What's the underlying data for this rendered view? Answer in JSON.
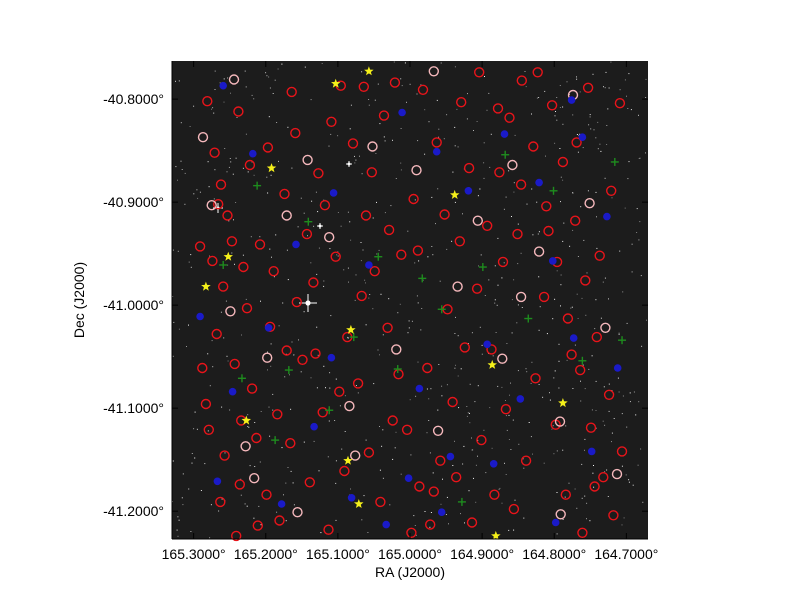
{
  "chart_data": {
    "type": "scatter",
    "title": "",
    "xlabel": "RA (J2000)",
    "ylabel": "Dec (J2000)",
    "xlim": [
      165.33,
      164.67
    ],
    "ylim": [
      -41.227,
      -40.763
    ],
    "x_ticks": [
      165.3,
      165.2,
      165.1,
      165.0,
      164.9,
      164.8,
      164.7
    ],
    "x_tick_labels": [
      "165.3000°",
      "165.2000°",
      "165.1000°",
      "165.0000°",
      "164.9000°",
      "164.8000°",
      "164.7000°"
    ],
    "y_ticks": [
      -40.8,
      -40.9,
      -41.0,
      -41.1,
      -41.2
    ],
    "y_tick_labels": [
      "-40.8000°",
      "-40.9000°",
      "-41.0000°",
      "-41.1000°",
      "-41.2000°"
    ],
    "grid": false,
    "background": "#1c1c1c",
    "series": [
      {
        "marker": "open-circle",
        "color": "#e8141a",
        "points": [
          [
            165.281,
            -40.802
          ],
          [
            165.271,
            -40.852
          ],
          [
            165.262,
            -40.883
          ],
          [
            165.247,
            -40.938
          ],
          [
            165.231,
            -40.963
          ],
          [
            165.259,
            -40.982
          ],
          [
            165.268,
            -41.028
          ],
          [
            165.243,
            -41.057
          ],
          [
            165.219,
            -41.081
          ],
          [
            165.283,
            -41.096
          ],
          [
            165.257,
            -41.146
          ],
          [
            165.236,
            -41.174
          ],
          [
            165.211,
            -41.214
          ],
          [
            165.199,
            -41.184
          ],
          [
            165.184,
            -41.106
          ],
          [
            165.171,
            -41.044
          ],
          [
            165.157,
            -40.997
          ],
          [
            165.143,
            -40.931
          ],
          [
            165.127,
            -40.872
          ],
          [
            165.109,
            -40.822
          ],
          [
            165.096,
            -40.787
          ],
          [
            165.079,
            -40.843
          ],
          [
            165.061,
            -40.913
          ],
          [
            165.049,
            -40.967
          ],
          [
            165.031,
            -41.022
          ],
          [
            165.016,
            -41.067
          ],
          [
            165.004,
            -41.121
          ],
          [
            164.987,
            -41.176
          ],
          [
            164.972,
            -41.213
          ],
          [
            164.958,
            -41.151
          ],
          [
            164.941,
            -41.094
          ],
          [
            164.924,
            -41.041
          ],
          [
            164.907,
            -40.984
          ],
          [
            164.893,
            -40.923
          ],
          [
            164.876,
            -40.871
          ],
          [
            164.862,
            -40.818
          ],
          [
            164.845,
            -40.782
          ],
          [
            164.829,
            -40.846
          ],
          [
            164.811,
            -40.904
          ],
          [
            164.796,
            -40.958
          ],
          [
            164.781,
            -41.013
          ],
          [
            164.764,
            -41.063
          ],
          [
            164.749,
            -41.119
          ],
          [
            164.732,
            -41.167
          ],
          [
            164.718,
            -41.204
          ],
          [
            164.706,
            -41.142
          ],
          [
            164.724,
            -41.087
          ],
          [
            164.741,
            -41.031
          ],
          [
            164.757,
            -40.976
          ],
          [
            164.771,
            -40.918
          ],
          [
            164.788,
            -40.861
          ],
          [
            164.803,
            -40.806
          ],
          [
            164.823,
            -40.774
          ],
          [
            164.851,
            -40.931
          ],
          [
            164.867,
            -41.101
          ],
          [
            164.883,
            -41.184
          ],
          [
            164.914,
            -41.211
          ],
          [
            164.936,
            -41.167
          ],
          [
            164.948,
            -41.004
          ],
          [
            164.963,
            -40.842
          ],
          [
            164.982,
            -40.791
          ],
          [
            164.995,
            -40.897
          ],
          [
            165.012,
            -40.951
          ],
          [
            165.024,
            -41.112
          ],
          [
            165.041,
            -41.191
          ],
          [
            165.057,
            -41.143
          ],
          [
            165.072,
            -41.076
          ],
          [
            165.087,
            -41.031
          ],
          [
            165.103,
            -40.953
          ],
          [
            165.118,
            -40.903
          ],
          [
            165.134,
            -40.978
          ],
          [
            165.149,
            -41.053
          ],
          [
            165.166,
            -41.134
          ],
          [
            165.181,
            -41.209
          ],
          [
            165.194,
            -41.021
          ],
          [
            165.208,
            -40.941
          ],
          [
            165.222,
            -40.864
          ],
          [
            165.238,
            -40.812
          ],
          [
            165.253,
            -40.913
          ],
          [
            165.274,
            -40.957
          ],
          [
            165.288,
            -41.061
          ],
          [
            165.279,
            -41.121
          ],
          [
            165.263,
            -41.191
          ],
          [
            165.241,
            -41.224
          ],
          [
            165.226,
            -41.003
          ],
          [
            165.213,
            -41.129
          ],
          [
            165.189,
            -40.967
          ],
          [
            165.174,
            -40.892
          ],
          [
            165.159,
            -40.833
          ],
          [
            165.139,
            -41.172
          ],
          [
            165.121,
            -41.104
          ],
          [
            165.113,
            -41.218
          ],
          [
            165.091,
            -41.161
          ],
          [
            165.067,
            -40.991
          ],
          [
            165.053,
            -40.871
          ],
          [
            165.036,
            -40.816
          ],
          [
            165.021,
            -40.784
          ],
          [
            164.989,
            -40.947
          ],
          [
            164.976,
            -41.061
          ],
          [
            164.952,
            -40.912
          ],
          [
            164.929,
            -40.803
          ],
          [
            164.918,
            -40.867
          ],
          [
            164.901,
            -41.131
          ],
          [
            164.887,
            -41.043
          ],
          [
            164.871,
            -40.958
          ],
          [
            164.856,
            -41.198
          ],
          [
            164.839,
            -41.151
          ],
          [
            164.826,
            -41.071
          ],
          [
            164.814,
            -40.992
          ],
          [
            164.798,
            -41.116
          ],
          [
            164.784,
            -41.184
          ],
          [
            164.769,
            -40.842
          ],
          [
            164.753,
            -40.789
          ],
          [
            164.737,
            -40.952
          ],
          [
            164.721,
            -40.889
          ],
          [
            164.709,
            -40.804
          ],
          [
            164.744,
            -41.176
          ],
          [
            164.761,
            -41.221
          ],
          [
            164.776,
            -41.048
          ],
          [
            164.808,
            -40.928
          ],
          [
            164.846,
            -40.883
          ],
          [
            164.878,
            -40.809
          ],
          [
            164.904,
            -40.774
          ],
          [
            164.931,
            -40.938
          ],
          [
            164.967,
            -41.181
          ],
          [
            164.998,
            -41.221
          ],
          [
            165.029,
            -40.927
          ],
          [
            165.064,
            -40.788
          ],
          [
            165.098,
            -41.084
          ],
          [
            165.131,
            -41.047
          ],
          [
            165.164,
            -40.793
          ],
          [
            165.197,
            -40.847
          ],
          [
            165.234,
            -41.112
          ],
          [
            165.266,
            -40.902
          ],
          [
            165.291,
            -40.943
          ]
        ]
      },
      {
        "marker": "open-circle",
        "color": "#f5b8bc",
        "points": [
          [
            165.287,
            -40.837
          ],
          [
            165.275,
            -40.903
          ],
          [
            165.249,
            -41.006
          ],
          [
            165.228,
            -41.137
          ],
          [
            165.198,
            -41.051
          ],
          [
            165.171,
            -40.913
          ],
          [
            165.142,
            -40.859
          ],
          [
            165.112,
            -40.934
          ],
          [
            165.084,
            -41.098
          ],
          [
            165.052,
            -40.846
          ],
          [
            165.019,
            -41.043
          ],
          [
            164.991,
            -40.869
          ],
          [
            164.961,
            -41.122
          ],
          [
            164.934,
            -40.982
          ],
          [
            164.906,
            -40.918
          ],
          [
            164.872,
            -41.052
          ],
          [
            164.846,
            -40.992
          ],
          [
            164.821,
            -40.948
          ],
          [
            164.792,
            -41.113
          ],
          [
            164.774,
            -40.796
          ],
          [
            164.751,
            -40.901
          ],
          [
            164.729,
            -41.022
          ],
          [
            164.713,
            -41.164
          ],
          [
            164.791,
            -41.203
          ],
          [
            164.858,
            -40.864
          ],
          [
            165.216,
            -41.168
          ],
          [
            165.244,
            -40.781
          ],
          [
            164.967,
            -40.773
          ],
          [
            165.076,
            -41.146
          ],
          [
            165.156,
            -41.201
          ]
        ]
      },
      {
        "marker": "filled-circle",
        "color": "#1a1ac8",
        "points": [
          [
            165.291,
            -41.011
          ],
          [
            165.267,
            -41.171
          ],
          [
            165.246,
            -41.084
          ],
          [
            165.218,
            -40.853
          ],
          [
            165.196,
            -41.022
          ],
          [
            165.178,
            -41.193
          ],
          [
            165.158,
            -40.941
          ],
          [
            165.133,
            -41.118
          ],
          [
            165.106,
            -40.891
          ],
          [
            165.081,
            -41.187
          ],
          [
            165.057,
            -40.961
          ],
          [
            165.033,
            -41.213
          ],
          [
            165.011,
            -40.813
          ],
          [
            164.987,
            -41.081
          ],
          [
            164.963,
            -40.851
          ],
          [
            164.944,
            -41.147
          ],
          [
            164.919,
            -40.889
          ],
          [
            164.893,
            -41.038
          ],
          [
            164.869,
            -40.834
          ],
          [
            164.847,
            -41.091
          ],
          [
            164.821,
            -40.881
          ],
          [
            164.798,
            -41.211
          ],
          [
            164.773,
            -41.032
          ],
          [
            164.748,
            -41.142
          ],
          [
            164.727,
            -40.914
          ],
          [
            164.712,
            -41.061
          ],
          [
            164.761,
            -40.837
          ],
          [
            164.802,
            -40.957
          ],
          [
            164.956,
            -41.201
          ],
          [
            165.109,
            -41.051
          ],
          [
            165.259,
            -40.787
          ],
          [
            165.002,
            -41.168
          ],
          [
            164.884,
            -41.154
          ],
          [
            164.776,
            -40.801
          ]
        ]
      },
      {
        "marker": "plus",
        "color": "#1e8c1e",
        "points": [
          [
            165.259,
            -40.961
          ],
          [
            165.212,
            -40.884
          ],
          [
            165.187,
            -41.131
          ],
          [
            165.141,
            -40.919
          ],
          [
            165.112,
            -41.102
          ],
          [
            165.078,
            -41.031
          ],
          [
            165.044,
            -40.953
          ],
          [
            165.017,
            -41.062
          ],
          [
            164.983,
            -40.974
          ],
          [
            164.956,
            -41.004
          ],
          [
            164.928,
            -41.191
          ],
          [
            164.899,
            -40.963
          ],
          [
            164.868,
            -40.854
          ],
          [
            164.836,
            -41.013
          ],
          [
            164.801,
            -40.889
          ],
          [
            164.761,
            -41.054
          ],
          [
            164.716,
            -40.861
          ],
          [
            164.706,
            -41.034
          ],
          [
            165.233,
            -41.071
          ],
          [
            165.168,
            -41.063
          ]
        ]
      },
      {
        "marker": "star",
        "color": "#f5f01a",
        "points": [
          [
            165.283,
            -40.982
          ],
          [
            165.252,
            -40.953
          ],
          [
            165.227,
            -41.112
          ],
          [
            165.192,
            -40.867
          ],
          [
            165.103,
            -40.785
          ],
          [
            165.082,
            -41.024
          ],
          [
            165.086,
            -41.151
          ],
          [
            165.071,
            -41.193
          ],
          [
            164.938,
            -40.893
          ],
          [
            164.886,
            -41.058
          ],
          [
            164.788,
            -41.095
          ],
          [
            164.881,
            -41.224
          ],
          [
            165.057,
            -40.773
          ]
        ]
      }
    ]
  }
}
